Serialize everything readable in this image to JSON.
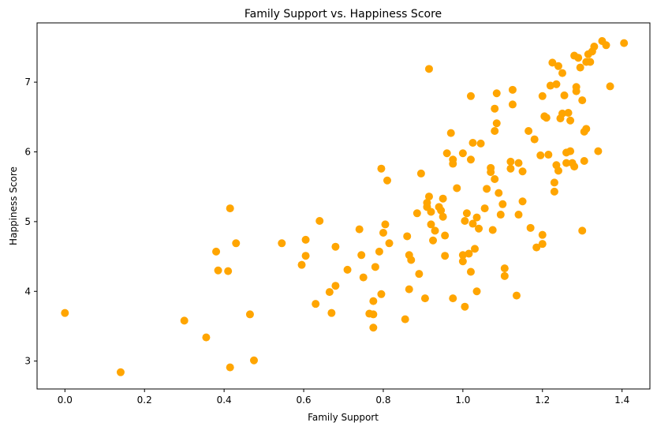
{
  "chart_data": {
    "type": "scatter",
    "title": "Family Support vs. Happiness Score",
    "xlabel": "Family Support",
    "ylabel": "Happiness Score",
    "xlim": [
      -0.07,
      1.47
    ],
    "ylim": [
      2.6,
      7.85
    ],
    "xticks": [
      0.0,
      0.2,
      0.4,
      0.6,
      0.8,
      1.0,
      1.2,
      1.4
    ],
    "xtick_labels": [
      "0.0",
      "0.2",
      "0.4",
      "0.6",
      "0.8",
      "1.0",
      "1.2",
      "1.4"
    ],
    "yticks": [
      3,
      4,
      5,
      6,
      7
    ],
    "ytick_labels": [
      "3",
      "4",
      "5",
      "6",
      "7"
    ],
    "grid": false,
    "marker_color": "#FFA500",
    "series": [
      {
        "name": "countries",
        "points": [
          [
            0.0,
            3.69
          ],
          [
            0.14,
            2.84
          ],
          [
            0.3,
            3.58
          ],
          [
            0.355,
            3.34
          ],
          [
            0.38,
            4.57
          ],
          [
            0.385,
            4.3
          ],
          [
            0.41,
            4.29
          ],
          [
            0.415,
            5.19
          ],
          [
            0.415,
            2.91
          ],
          [
            0.43,
            4.69
          ],
          [
            0.465,
            3.67
          ],
          [
            0.475,
            3.01
          ],
          [
            0.545,
            4.69
          ],
          [
            0.595,
            4.38
          ],
          [
            0.605,
            4.74
          ],
          [
            0.605,
            4.51
          ],
          [
            0.63,
            3.82
          ],
          [
            0.64,
            5.01
          ],
          [
            0.665,
            3.99
          ],
          [
            0.67,
            3.69
          ],
          [
            0.68,
            4.64
          ],
          [
            0.68,
            4.08
          ],
          [
            0.71,
            4.31
          ],
          [
            0.74,
            4.89
          ],
          [
            0.745,
            4.52
          ],
          [
            0.75,
            4.2
          ],
          [
            0.765,
            3.68
          ],
          [
            0.775,
            3.67
          ],
          [
            0.775,
            3.86
          ],
          [
            0.775,
            3.48
          ],
          [
            0.78,
            4.35
          ],
          [
            0.79,
            4.57
          ],
          [
            0.795,
            3.96
          ],
          [
            0.8,
            4.84
          ],
          [
            0.805,
            4.96
          ],
          [
            0.815,
            4.69
          ],
          [
            0.795,
            5.76
          ],
          [
            0.81,
            5.59
          ],
          [
            0.855,
            3.6
          ],
          [
            0.86,
            4.79
          ],
          [
            0.865,
            4.03
          ],
          [
            0.865,
            4.52
          ],
          [
            0.87,
            4.45
          ],
          [
            0.885,
            5.12
          ],
          [
            0.89,
            4.25
          ],
          [
            0.895,
            5.69
          ],
          [
            0.905,
            3.9
          ],
          [
            0.91,
            5.27
          ],
          [
            0.91,
            5.21
          ],
          [
            0.915,
            5.36
          ],
          [
            0.915,
            7.19
          ],
          [
            0.92,
            5.14
          ],
          [
            0.92,
            4.96
          ],
          [
            0.925,
            4.73
          ],
          [
            0.93,
            4.87
          ],
          [
            0.94,
            5.21
          ],
          [
            0.945,
            5.16
          ],
          [
            0.95,
            5.33
          ],
          [
            0.95,
            5.07
          ],
          [
            0.955,
            4.8
          ],
          [
            0.955,
            4.51
          ],
          [
            0.96,
            5.98
          ],
          [
            0.97,
            6.27
          ],
          [
            0.975,
            5.83
          ],
          [
            0.975,
            3.9
          ],
          [
            0.975,
            5.89
          ],
          [
            0.985,
            5.48
          ],
          [
            1.0,
            5.98
          ],
          [
            1.0,
            4.52
          ],
          [
            1.0,
            4.43
          ],
          [
            1.005,
            3.78
          ],
          [
            1.005,
            5.01
          ],
          [
            1.01,
            5.12
          ],
          [
            1.015,
            4.54
          ],
          [
            1.02,
            5.89
          ],
          [
            1.02,
            4.28
          ],
          [
            1.02,
            6.8
          ],
          [
            1.025,
            6.13
          ],
          [
            1.025,
            4.97
          ],
          [
            1.03,
            4.61
          ],
          [
            1.035,
            5.06
          ],
          [
            1.035,
            4.0
          ],
          [
            1.04,
            4.9
          ],
          [
            1.045,
            6.12
          ],
          [
            1.055,
            5.19
          ],
          [
            1.06,
            5.47
          ],
          [
            1.07,
            5.77
          ],
          [
            1.07,
            5.71
          ],
          [
            1.075,
            4.88
          ],
          [
            1.08,
            6.62
          ],
          [
            1.08,
            6.3
          ],
          [
            1.08,
            5.61
          ],
          [
            1.085,
            6.41
          ],
          [
            1.085,
            6.84
          ],
          [
            1.09,
            5.41
          ],
          [
            1.095,
            5.1
          ],
          [
            1.1,
            5.25
          ],
          [
            1.105,
            4.33
          ],
          [
            1.105,
            4.22
          ],
          [
            1.12,
            5.76
          ],
          [
            1.12,
            5.86
          ],
          [
            1.125,
            6.68
          ],
          [
            1.125,
            6.89
          ],
          [
            1.135,
            3.94
          ],
          [
            1.14,
            5.1
          ],
          [
            1.14,
            5.84
          ],
          [
            1.15,
            5.72
          ],
          [
            1.15,
            5.29
          ],
          [
            1.165,
            6.3
          ],
          [
            1.17,
            4.91
          ],
          [
            1.18,
            6.18
          ],
          [
            1.185,
            4.63
          ],
          [
            1.195,
            5.95
          ],
          [
            1.2,
            4.81
          ],
          [
            1.2,
            4.68
          ],
          [
            1.2,
            6.8
          ],
          [
            1.205,
            6.51
          ],
          [
            1.21,
            6.49
          ],
          [
            1.215,
            5.96
          ],
          [
            1.22,
            6.95
          ],
          [
            1.225,
            7.28
          ],
          [
            1.23,
            5.56
          ],
          [
            1.23,
            5.43
          ],
          [
            1.235,
            6.97
          ],
          [
            1.235,
            5.81
          ],
          [
            1.24,
            5.73
          ],
          [
            1.24,
            7.23
          ],
          [
            1.245,
            6.48
          ],
          [
            1.25,
            7.13
          ],
          [
            1.25,
            6.55
          ],
          [
            1.255,
            6.81
          ],
          [
            1.26,
            5.84
          ],
          [
            1.26,
            5.99
          ],
          [
            1.265,
            6.56
          ],
          [
            1.27,
            6.45
          ],
          [
            1.27,
            6.01
          ],
          [
            1.275,
            5.84
          ],
          [
            1.28,
            5.79
          ],
          [
            1.28,
            7.38
          ],
          [
            1.285,
            6.93
          ],
          [
            1.285,
            6.87
          ],
          [
            1.29,
            7.35
          ],
          [
            1.295,
            7.21
          ],
          [
            1.3,
            6.74
          ],
          [
            1.3,
            4.87
          ],
          [
            1.305,
            6.29
          ],
          [
            1.305,
            5.87
          ],
          [
            1.31,
            7.29
          ],
          [
            1.31,
            6.33
          ],
          [
            1.315,
            7.4
          ],
          [
            1.32,
            7.29
          ],
          [
            1.325,
            7.44
          ],
          [
            1.33,
            7.51
          ],
          [
            1.34,
            6.01
          ],
          [
            1.35,
            7.59
          ],
          [
            1.36,
            7.53
          ],
          [
            1.37,
            6.94
          ],
          [
            1.405,
            7.56
          ]
        ]
      }
    ]
  }
}
